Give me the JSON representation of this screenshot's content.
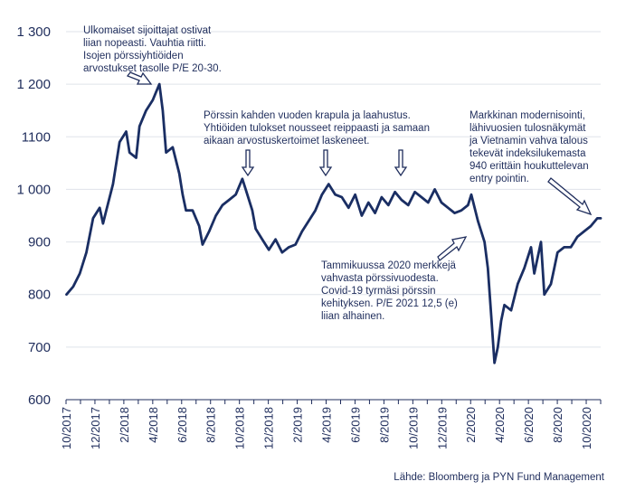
{
  "chart_data": {
    "type": "line",
    "title": "",
    "xlabel": "",
    "ylabel": "",
    "ylim": [
      600,
      1300
    ],
    "yticks": [
      600,
      700,
      800,
      900,
      1000,
      1100,
      1200,
      1300
    ],
    "ytick_labels": [
      "600",
      "700",
      "800",
      "900",
      "1 000",
      "1100",
      "1 200",
      "1 300"
    ],
    "xticks": [
      "10/2017",
      "12/2017",
      "2/2018",
      "4/2018",
      "6/2018",
      "8/2018",
      "10/2018",
      "12/2018",
      "2/2019",
      "4/2019",
      "6/2019",
      "8/2019",
      "10/2019",
      "12/2019",
      "2/2020",
      "4/2020",
      "6/2020",
      "8/2020",
      "10/2020"
    ],
    "grid": "horizontal",
    "line_color": "#1a2e63",
    "series": [
      {
        "x": [
          "2017-10-02",
          "2017-10-16",
          "2017-10-30",
          "2017-11-13",
          "2017-11-27",
          "2017-12-11",
          "2017-12-18",
          "2017-12-25",
          "2018-01-08",
          "2018-01-22",
          "2018-02-05",
          "2018-02-12",
          "2018-02-26",
          "2018-03-05",
          "2018-03-19",
          "2018-04-02",
          "2018-04-09",
          "2018-04-16",
          "2018-04-23",
          "2018-04-30",
          "2018-05-14",
          "2018-05-28",
          "2018-06-04",
          "2018-06-11",
          "2018-06-25",
          "2018-07-09",
          "2018-07-16",
          "2018-07-30",
          "2018-08-13",
          "2018-08-27",
          "2018-09-10",
          "2018-09-24",
          "2018-10-08",
          "2018-10-15",
          "2018-10-29",
          "2018-11-05",
          "2018-11-19",
          "2018-12-03",
          "2018-12-17",
          "2018-12-31",
          "2019-01-14",
          "2019-01-28",
          "2019-02-11",
          "2019-02-25",
          "2019-03-11",
          "2019-03-25",
          "2019-04-08",
          "2019-04-22",
          "2019-05-06",
          "2019-05-20",
          "2019-06-03",
          "2019-06-17",
          "2019-07-01",
          "2019-07-15",
          "2019-07-29",
          "2019-08-12",
          "2019-08-26",
          "2019-09-09",
          "2019-09-23",
          "2019-10-07",
          "2019-10-21",
          "2019-11-04",
          "2019-11-18",
          "2019-12-02",
          "2019-12-16",
          "2019-12-30",
          "2020-01-13",
          "2020-01-27",
          "2020-02-03",
          "2020-02-17",
          "2020-03-02",
          "2020-03-09",
          "2020-03-16",
          "2020-03-23",
          "2020-03-30",
          "2020-04-06",
          "2020-04-13",
          "2020-04-27",
          "2020-05-11",
          "2020-05-25",
          "2020-06-08",
          "2020-06-15",
          "2020-06-29",
          "2020-07-06",
          "2020-07-20",
          "2020-07-27",
          "2020-08-03",
          "2020-08-17",
          "2020-08-31",
          "2020-09-14",
          "2020-09-28",
          "2020-10-12",
          "2020-10-26",
          "2020-11-02"
        ],
        "values": [
          800,
          815,
          840,
          880,
          945,
          965,
          935,
          960,
          1010,
          1090,
          1110,
          1070,
          1060,
          1120,
          1150,
          1170,
          1185,
          1200,
          1150,
          1070,
          1080,
          1030,
          990,
          960,
          960,
          930,
          895,
          920,
          950,
          970,
          980,
          990,
          1020,
          1000,
          960,
          925,
          905,
          885,
          905,
          880,
          890,
          895,
          920,
          940,
          960,
          990,
          1010,
          990,
          985,
          965,
          990,
          950,
          975,
          955,
          985,
          970,
          995,
          980,
          970,
          995,
          985,
          975,
          1000,
          975,
          965,
          955,
          960,
          970,
          990,
          940,
          900,
          850,
          760,
          670,
          700,
          750,
          780,
          770,
          820,
          850,
          890,
          840,
          900,
          800,
          820,
          850,
          880,
          890,
          890,
          910,
          920,
          930,
          945,
          945
        ]
      }
    ],
    "annotations": [
      {
        "lines": [
          "Ulkomaiset sijoittajat ostivat",
          "liian nopeasti. Vauhtia riitti.",
          "Isojen pörssiyhtiöiden",
          "arvostukset tasolle P/E 20-30."
        ]
      },
      {
        "lines": [
          "Pörssin kahden vuoden krapula ja laahustus.",
          "Yhtiöiden tulokset nousseet reippaasti ja samaan",
          "aikaan arvostuskertoimet laskeneet."
        ]
      },
      {
        "lines": [
          "Markkinan modernisointi,",
          "lähivuosien tulosnäkymät",
          "ja Vietnamin vahva talous",
          "tekevät indeksilukemasta",
          "940 erittäin houkuttelevan",
          "entry pointin."
        ]
      },
      {
        "lines": [
          "Tammikuussa 2020 merkkejä",
          "vahvasta pörssivuodesta.",
          "Covid-19 tyrmäsi pörssin",
          "kehityksen. P/E 2021 12,5 (e)",
          "liian alhainen."
        ]
      }
    ],
    "source": "Lähde: Bloomberg ja PYN Fund Management"
  }
}
